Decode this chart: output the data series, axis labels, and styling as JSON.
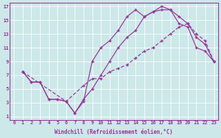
{
  "xlabel": "Windchill (Refroidissement éolien,°C)",
  "background_color": "#cce8e8",
  "grid_color": "#ffffff",
  "line_color": "#993399",
  "xlim": [
    -0.5,
    23.5
  ],
  "ylim": [
    0.5,
    17.5
  ],
  "xticks": [
    0,
    1,
    2,
    3,
    4,
    5,
    6,
    7,
    8,
    9,
    10,
    11,
    12,
    13,
    14,
    15,
    16,
    17,
    18,
    19,
    20,
    21,
    22,
    23
  ],
  "yticks": [
    1,
    3,
    5,
    7,
    9,
    11,
    13,
    15,
    17
  ],
  "line1_x": [
    1,
    2,
    3,
    4,
    5,
    6,
    7,
    8,
    9,
    10,
    11,
    12,
    13,
    14,
    15,
    16,
    17,
    18,
    19,
    20,
    21,
    22,
    23
  ],
  "line1_y": [
    7.5,
    6.0,
    6.0,
    3.5,
    3.5,
    3.2,
    1.5,
    3.2,
    9.0,
    11.0,
    12.0,
    13.5,
    15.5,
    16.5,
    15.5,
    16.2,
    17.0,
    16.5,
    14.5,
    14.0,
    11.0,
    10.5,
    9.0
  ],
  "line2_x": [
    1,
    2,
    3,
    4,
    5,
    6,
    7,
    8,
    9,
    10,
    11,
    12,
    13,
    14,
    15,
    16,
    17,
    18,
    19,
    20,
    21,
    22,
    23
  ],
  "line2_y": [
    7.5,
    6.0,
    6.0,
    3.5,
    3.5,
    3.2,
    1.5,
    3.5,
    5.0,
    7.0,
    9.0,
    11.0,
    12.5,
    13.5,
    15.5,
    16.2,
    16.5,
    16.5,
    15.5,
    14.5,
    12.5,
    11.5,
    9.0
  ],
  "line3_x": [
    1,
    6,
    8,
    9,
    10,
    11,
    12,
    13,
    14,
    15,
    16,
    17,
    18,
    19,
    20,
    21,
    22,
    23
  ],
  "line3_y": [
    7.5,
    3.2,
    5.5,
    6.5,
    6.5,
    7.5,
    8.0,
    8.5,
    9.5,
    10.5,
    11.0,
    12.0,
    13.0,
    14.0,
    14.5,
    13.0,
    12.0,
    9.0
  ]
}
